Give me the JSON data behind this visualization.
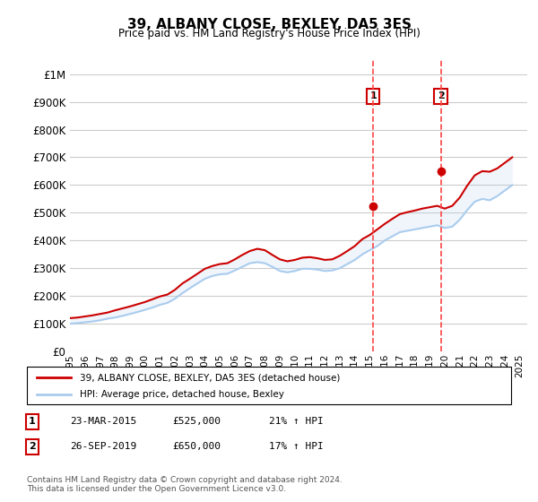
{
  "title": "39, ALBANY CLOSE, BEXLEY, DA5 3ES",
  "subtitle": "Price paid vs. HM Land Registry's House Price Index (HPI)",
  "ylabel_ticks": [
    "£0",
    "£100K",
    "£200K",
    "£300K",
    "£400K",
    "£500K",
    "£600K",
    "£700K",
    "£800K",
    "£900K",
    "£1M"
  ],
  "ytick_values": [
    0,
    100000,
    200000,
    300000,
    400000,
    500000,
    600000,
    700000,
    800000,
    900000,
    1000000
  ],
  "ylim": [
    0,
    1050000
  ],
  "xlim_start": 1995.0,
  "xlim_end": 2025.5,
  "grid_color": "#cccccc",
  "background_color": "#ffffff",
  "plot_background": "#ffffff",
  "red_line_color": "#cc0000",
  "blue_line_color": "#aaccee",
  "dashed_line_color": "#ff4444",
  "event1_x": 2015.22,
  "event2_x": 2019.73,
  "event1_y": 525000,
  "event2_y": 650000,
  "legend_label_red": "39, ALBANY CLOSE, BEXLEY, DA5 3ES (detached house)",
  "legend_label_blue": "HPI: Average price, detached house, Bexley",
  "table_entries": [
    {
      "num": "1",
      "date": "23-MAR-2015",
      "price": "£525,000",
      "hpi": "21% ↑ HPI"
    },
    {
      "num": "2",
      "date": "26-SEP-2019",
      "price": "£650,000",
      "hpi": "17% ↑ HPI"
    }
  ],
  "footer": "Contains HM Land Registry data © Crown copyright and database right 2024.\nThis data is licensed under the Open Government Licence v3.0.",
  "hpi_x": [
    1995.0,
    1995.5,
    1996.0,
    1996.5,
    1997.0,
    1997.5,
    1998.0,
    1998.5,
    1999.0,
    1999.5,
    2000.0,
    2000.5,
    2001.0,
    2001.5,
    2002.0,
    2002.5,
    2003.0,
    2003.5,
    2004.0,
    2004.5,
    2005.0,
    2005.5,
    2006.0,
    2006.5,
    2007.0,
    2007.5,
    2008.0,
    2008.5,
    2009.0,
    2009.5,
    2010.0,
    2010.5,
    2011.0,
    2011.5,
    2012.0,
    2012.5,
    2013.0,
    2013.5,
    2014.0,
    2014.5,
    2015.0,
    2015.5,
    2016.0,
    2016.5,
    2017.0,
    2017.5,
    2018.0,
    2018.5,
    2019.0,
    2019.5,
    2020.0,
    2020.5,
    2021.0,
    2021.5,
    2022.0,
    2022.5,
    2023.0,
    2023.5,
    2024.0,
    2024.5
  ],
  "hpi_y": [
    100000,
    102000,
    105000,
    108000,
    112000,
    118000,
    122000,
    128000,
    135000,
    142000,
    150000,
    158000,
    168000,
    175000,
    190000,
    210000,
    228000,
    245000,
    262000,
    272000,
    278000,
    280000,
    292000,
    305000,
    318000,
    322000,
    318000,
    305000,
    290000,
    285000,
    290000,
    298000,
    298000,
    295000,
    290000,
    292000,
    300000,
    315000,
    330000,
    350000,
    365000,
    380000,
    400000,
    415000,
    430000,
    435000,
    440000,
    445000,
    450000,
    455000,
    445000,
    450000,
    475000,
    510000,
    540000,
    550000,
    545000,
    560000,
    580000,
    600000
  ],
  "red_x": [
    1995.0,
    1995.5,
    1996.0,
    1996.5,
    1997.0,
    1997.5,
    1998.0,
    1998.5,
    1999.0,
    1999.5,
    2000.0,
    2000.5,
    2001.0,
    2001.5,
    2002.0,
    2002.5,
    2003.0,
    2003.5,
    2004.0,
    2004.5,
    2005.0,
    2005.5,
    2006.0,
    2006.5,
    2007.0,
    2007.5,
    2008.0,
    2008.5,
    2009.0,
    2009.5,
    2010.0,
    2010.5,
    2011.0,
    2011.5,
    2012.0,
    2012.5,
    2013.0,
    2013.5,
    2014.0,
    2014.5,
    2015.0,
    2015.5,
    2016.0,
    2016.5,
    2017.0,
    2017.5,
    2018.0,
    2018.5,
    2019.0,
    2019.5,
    2020.0,
    2020.5,
    2021.0,
    2021.5,
    2022.0,
    2022.5,
    2023.0,
    2023.5,
    2024.0,
    2024.5
  ],
  "red_y": [
    120000,
    122000,
    126000,
    130000,
    135000,
    140000,
    148000,
    155000,
    162000,
    170000,
    178000,
    188000,
    198000,
    205000,
    222000,
    245000,
    262000,
    280000,
    298000,
    308000,
    315000,
    318000,
    332000,
    348000,
    362000,
    370000,
    365000,
    348000,
    332000,
    325000,
    330000,
    338000,
    340000,
    336000,
    330000,
    332000,
    345000,
    362000,
    380000,
    405000,
    420000,
    440000,
    460000,
    478000,
    495000,
    502000,
    508000,
    515000,
    520000,
    525000,
    515000,
    525000,
    555000,
    598000,
    635000,
    650000,
    648000,
    660000,
    680000,
    700000
  ],
  "xtick_years": [
    1995,
    1996,
    1997,
    1998,
    1999,
    2000,
    2001,
    2002,
    2003,
    2004,
    2005,
    2006,
    2007,
    2008,
    2009,
    2010,
    2011,
    2012,
    2013,
    2014,
    2015,
    2016,
    2017,
    2018,
    2019,
    2020,
    2021,
    2022,
    2023,
    2024,
    2025
  ]
}
